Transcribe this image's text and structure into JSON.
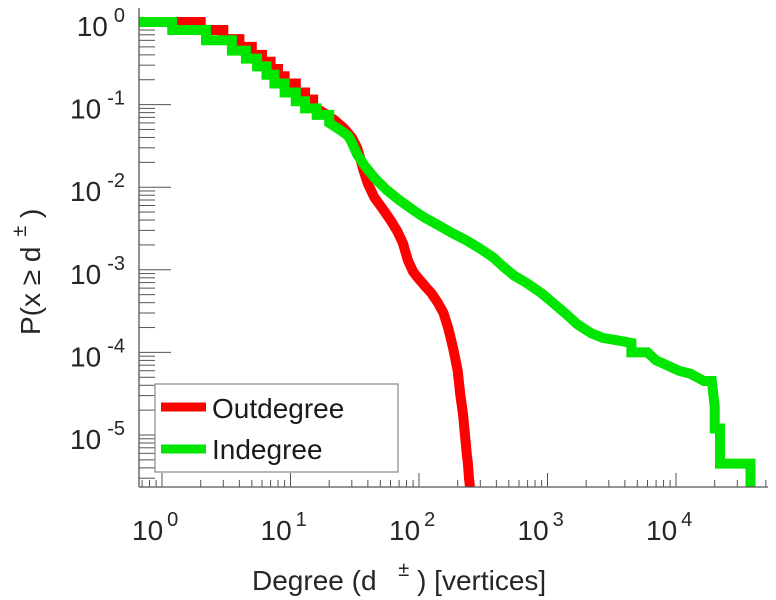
{
  "chart_data": {
    "type": "line",
    "title": "",
    "xlabel": "Degree (d ±) [vertices]",
    "xlabel_parts": {
      "main": "Degree (d",
      "sup": "±",
      "tail": ") [vertices]"
    },
    "ylabel": "P(x ≥ d±)",
    "ylabel_parts": {
      "main": "P(x ≥ d",
      "sup": "±",
      "tail": ")"
    },
    "xscale": "log",
    "yscale": "log",
    "xlim": [
      0.66,
      51000
    ],
    "ylim": [
      2.3e-06,
      1.5
    ],
    "x_ticks": [
      {
        "base": "10",
        "exp": "0",
        "value": 1
      },
      {
        "base": "10",
        "exp": "1",
        "value": 10
      },
      {
        "base": "10",
        "exp": "2",
        "value": 100
      },
      {
        "base": "10",
        "exp": "3",
        "value": 1000
      },
      {
        "base": "10",
        "exp": "4",
        "value": 10000
      }
    ],
    "y_ticks": [
      {
        "base": "10",
        "exp": "0",
        "value": 1
      },
      {
        "base": "10",
        "exp": "-1",
        "value": 0.1
      },
      {
        "base": "10",
        "exp": "-2",
        "value": 0.01
      },
      {
        "base": "10",
        "exp": "-3",
        "value": 0.001
      },
      {
        "base": "10",
        "exp": "-4",
        "value": 0.0001
      },
      {
        "base": "10",
        "exp": "-5",
        "value": 1e-05
      }
    ],
    "legend": {
      "placement": "bottom-left"
    },
    "grid": false,
    "series": [
      {
        "name": "Outdegree",
        "color": "#ff0000",
        "x": [
          0.66,
          2,
          2,
          3,
          3,
          4,
          4,
          5,
          5,
          6,
          6,
          7,
          7,
          8,
          8,
          9,
          9,
          11,
          11,
          13,
          13,
          15,
          15,
          18,
          22,
          26,
          30,
          33,
          35,
          37,
          40,
          45,
          52,
          60,
          68,
          75,
          82,
          90,
          98,
          110,
          125,
          140,
          155,
          170,
          185,
          200,
          210,
          220,
          228,
          235,
          240,
          245,
          250
        ],
        "y": [
          1,
          1,
          0.8,
          0.8,
          0.62,
          0.62,
          0.5,
          0.5,
          0.4,
          0.4,
          0.33,
          0.33,
          0.27,
          0.27,
          0.22,
          0.22,
          0.18,
          0.18,
          0.14,
          0.14,
          0.115,
          0.115,
          0.095,
          0.08,
          0.065,
          0.052,
          0.04,
          0.03,
          0.022,
          0.016,
          0.011,
          0.0075,
          0.0055,
          0.004,
          0.0029,
          0.0021,
          0.0013,
          0.00095,
          0.0008,
          0.00065,
          0.00052,
          0.0004,
          0.0003,
          0.00019,
          0.00011,
          6e-05,
          3e-05,
          1.8e-05,
          1e-05,
          6e-06,
          4.5e-06,
          3e-06,
          2.3e-06
        ]
      },
      {
        "name": "Indegree",
        "color": "#00e600",
        "x": [
          0.66,
          1.2,
          1.2,
          2.2,
          2.2,
          3.5,
          3.5,
          4.5,
          4.5,
          5.5,
          5.5,
          6.5,
          6.5,
          7.5,
          7.5,
          9,
          9,
          11,
          11,
          13,
          13,
          16,
          16,
          20,
          20,
          24,
          28,
          30,
          33,
          38,
          45,
          55,
          70,
          90,
          110,
          140,
          180,
          230,
          300,
          380,
          450,
          550,
          700,
          900,
          1100,
          1400,
          1700,
          2200,
          2700,
          3500,
          4500,
          4500,
          6000,
          7000,
          8500,
          10500,
          13000,
          16500,
          19000,
          20000,
          20000,
          22000,
          22000,
          38000,
          38000
        ],
        "y": [
          1,
          1,
          0.8,
          0.8,
          0.6,
          0.6,
          0.45,
          0.45,
          0.36,
          0.36,
          0.29,
          0.29,
          0.23,
          0.23,
          0.18,
          0.18,
          0.14,
          0.14,
          0.11,
          0.11,
          0.09,
          0.09,
          0.075,
          0.075,
          0.06,
          0.05,
          0.042,
          0.035,
          0.025,
          0.018,
          0.013,
          0.0095,
          0.007,
          0.0053,
          0.0043,
          0.0035,
          0.0028,
          0.0023,
          0.0018,
          0.0014,
          0.0011,
          0.00085,
          0.00068,
          0.00052,
          0.0004,
          0.00029,
          0.00022,
          0.00017,
          0.00015,
          0.00014,
          0.00013,
          0.0001,
          0.0001,
          8e-05,
          7e-05,
          6e-05,
          5.5e-05,
          4.5e-05,
          4.5e-05,
          2.2e-05,
          1.2e-05,
          1.2e-05,
          4.5e-06,
          4.5e-06,
          2.3e-06
        ]
      }
    ]
  }
}
